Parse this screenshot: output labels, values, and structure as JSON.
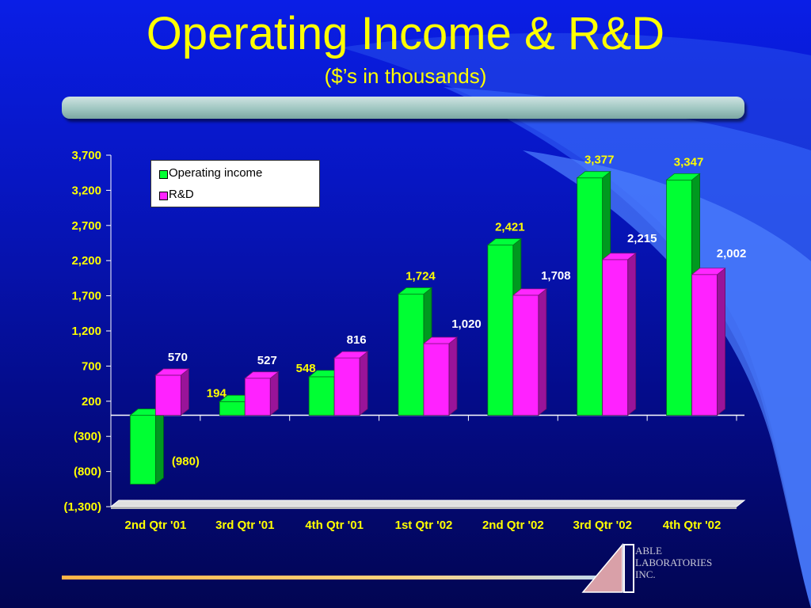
{
  "slide": {
    "title": "Operating Income & R&D",
    "subtitle": "($’s in thousands)"
  },
  "brand": {
    "lines": [
      "ABLE",
      "LABORATORIES",
      "INC."
    ]
  },
  "colors": {
    "operating_income": "#00ff33",
    "rd": "#ff22ff",
    "tick_label": "#ffff00"
  },
  "chart_data": {
    "type": "bar",
    "categories": [
      "2nd Qtr '01",
      "3rd Qtr '01",
      "4th Qtr '01",
      "1st Qtr '02",
      "2nd Qtr '02",
      "3rd Qtr '02",
      "4th Qtr '02"
    ],
    "series": [
      {
        "name": "Operating income",
        "values": [
          -980,
          194,
          548,
          1724,
          2421,
          3377,
          3347
        ],
        "labels": [
          "(980)",
          "194",
          "548",
          "1,724",
          "2,421",
          "3,377",
          "3,347"
        ]
      },
      {
        "name": "R&D",
        "values": [
          570,
          527,
          816,
          1020,
          1708,
          2215,
          2002
        ],
        "labels": [
          "570",
          "527",
          "816",
          "1,020",
          "1,708",
          "2,215",
          "2,002"
        ]
      }
    ],
    "yticks": [
      3700,
      3200,
      2700,
      2200,
      1700,
      1200,
      700,
      200,
      -300,
      -800,
      -1300
    ],
    "ytick_labels": [
      "3,700",
      "3,200",
      "2,700",
      "2,200",
      "1,700",
      "1,200",
      "700",
      "200",
      "(300)",
      "(800)",
      "(1,300)"
    ],
    "ylim": [
      -1300,
      3700
    ],
    "legend_position": "top-left",
    "grid": false
  }
}
